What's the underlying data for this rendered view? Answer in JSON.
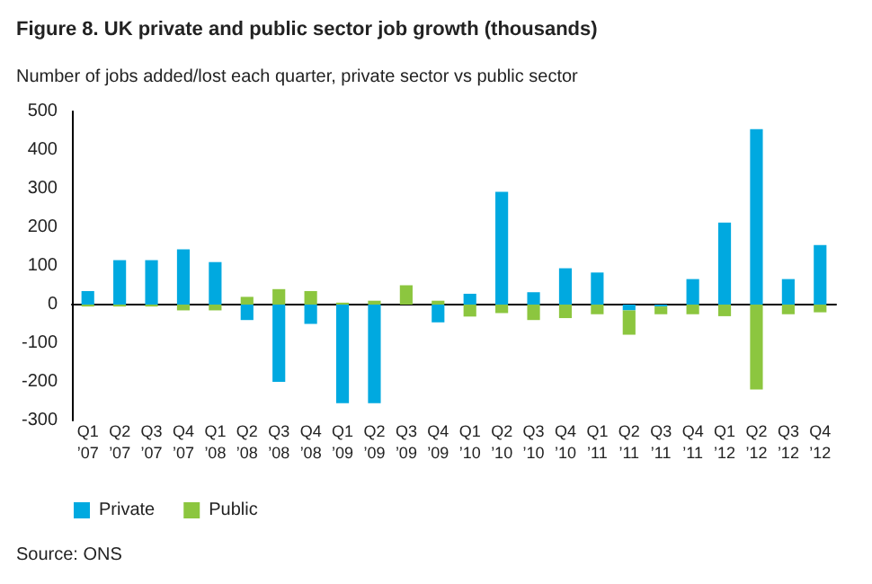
{
  "chart_data": {
    "type": "bar",
    "title": "Figure 8. UK private and public sector job growth (thousands)",
    "subtitle": "Number of jobs added/lost each quarter, private sector vs public sector",
    "annotations": [
      "Source: ONS"
    ],
    "categories": [
      "Q1\n’07",
      "Q2\n’07",
      "Q3\n’07",
      "Q4\n’07",
      "Q1\n’08",
      "Q2\n’08",
      "Q3\n’08",
      "Q4\n’08",
      "Q1\n’09",
      "Q2\n’09",
      "Q3\n’09",
      "Q4\n’09",
      "Q1\n’10",
      "Q2\n’10",
      "Q3\n’10",
      "Q4\n’10",
      "Q1\n’11",
      "Q2\n’11",
      "Q3\n’11",
      "Q4\n’11",
      "Q1\n’12",
      "Q2\n’12",
      "Q3\n’12",
      "Q4\n’12"
    ],
    "series": [
      {
        "name": "Private",
        "color": "#00a9e0",
        "values": [
          35,
          115,
          115,
          143,
          110,
          -40,
          -200,
          -50,
          -255,
          -255,
          0,
          -46,
          28,
          292,
          32,
          94,
          83,
          -15,
          -5,
          66,
          212,
          454,
          66,
          154
        ]
      },
      {
        "name": "Public",
        "color": "#8cc63f",
        "values": [
          -5,
          -5,
          -5,
          -15,
          -15,
          20,
          40,
          35,
          5,
          10,
          50,
          10,
          -31,
          -22,
          -40,
          -35,
          -25,
          -63,
          -20,
          -25,
          -30,
          -220,
          -25,
          -20
        ]
      }
    ],
    "ylim": [
      -300,
      500
    ],
    "yticks": [
      -300,
      -200,
      -100,
      0,
      100,
      200,
      300,
      400,
      500
    ],
    "stacked": true,
    "legend": "bottom left"
  }
}
